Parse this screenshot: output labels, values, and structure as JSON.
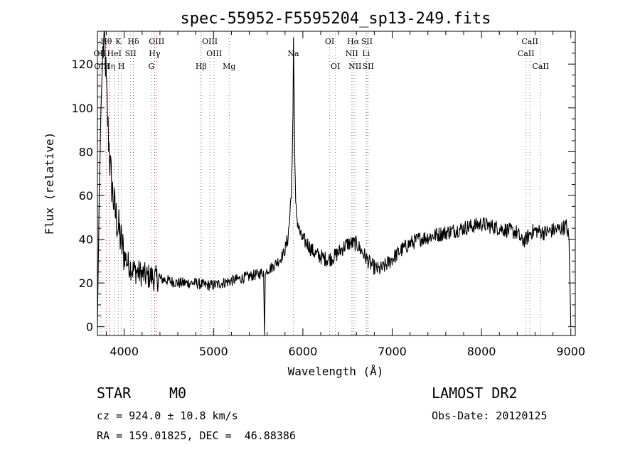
{
  "chart_data": {
    "type": "line",
    "title": "spec-55952-F5595204_sp13-249.fits",
    "xlabel": "Wavelength (Å)",
    "ylabel": "Flux (relative)",
    "xlim": [
      3700,
      9050
    ],
    "ylim": [
      -4,
      135
    ],
    "xticks": [
      4000,
      5000,
      6000,
      7000,
      8000,
      9000
    ],
    "yticks": [
      0,
      20,
      40,
      60,
      80,
      100,
      120
    ],
    "grid": false,
    "series": [
      {
        "x": [
          3700,
          3720,
          3740,
          3760,
          3780,
          3800,
          3820,
          3840,
          3860,
          3880,
          3900,
          3920,
          3940,
          3960,
          3980,
          4000,
          4020,
          4040,
          4060,
          4080,
          4100,
          4150,
          4200,
          4250,
          4300,
          4350,
          4400,
          4500,
          4600,
          4700,
          4800,
          4900,
          5000,
          5100,
          5200,
          5300,
          5400,
          5500,
          5560,
          5570,
          5580,
          5590,
          5600,
          5650,
          5700,
          5750,
          5800,
          5830,
          5850,
          5870,
          5880,
          5890,
          5895,
          5900,
          5910,
          5920,
          5940,
          5960,
          5980,
          6000,
          6050,
          6100,
          6150,
          6200,
          6250,
          6300,
          6350,
          6400,
          6450,
          6500,
          6550,
          6600,
          6650,
          6700,
          6750,
          6800,
          6850,
          6900,
          6950,
          7000,
          7050,
          7100,
          7200,
          7300,
          7400,
          7500,
          7600,
          7700,
          7800,
          7900,
          8000,
          8100,
          8200,
          8300,
          8400,
          8450,
          8500,
          8550,
          8600,
          8700,
          8800,
          8900,
          8950,
          8980,
          9000
        ],
        "y": [
          0,
          60,
          100,
          125,
          132,
          110,
          90,
          75,
          65,
          58,
          52,
          48,
          44,
          40,
          36,
          33,
          31,
          29,
          28,
          27,
          26,
          25,
          24,
          23,
          23,
          22,
          22,
          21,
          20,
          20,
          20,
          19,
          19,
          20,
          21,
          22,
          23,
          24,
          25,
          -4,
          24,
          25,
          26,
          27,
          29,
          31,
          35,
          40,
          48,
          62,
          75,
          100,
          132,
          115,
          75,
          55,
          48,
          44,
          41,
          40,
          38,
          35,
          33,
          32,
          31,
          31,
          32,
          34,
          36,
          38,
          38,
          38,
          35,
          32,
          29,
          27,
          26,
          27,
          29,
          31,
          33,
          35,
          38,
          40,
          41,
          42,
          43,
          44,
          45,
          46,
          47,
          46,
          45,
          44,
          43,
          39,
          40,
          43,
          44,
          43,
          44,
          45,
          46,
          40,
          0
        ]
      }
    ],
    "line_markers": [
      {
        "label": "Hθ",
        "wave": 3798,
        "row": 0,
        "color": "#cc2222"
      },
      {
        "label": "K",
        "wave": 3934,
        "row": 0,
        "color": "#888888"
      },
      {
        "label": "Hδ",
        "wave": 4102,
        "row": 0,
        "color": "#cc2222"
      },
      {
        "label": "OIII",
        "wave": 4363,
        "row": 0,
        "color": "#888888"
      },
      {
        "label": "OIII",
        "wave": 4959,
        "row": 0,
        "color": "#888888"
      },
      {
        "label": "OI",
        "wave": 6300,
        "row": 0,
        "color": "#888888"
      },
      {
        "label": "Hα",
        "wave": 6563,
        "row": 0,
        "color": "#cc2222"
      },
      {
        "label": "SII",
        "wave": 6716,
        "row": 0,
        "color": "#888888"
      },
      {
        "label": "CaII",
        "wave": 8542,
        "row": 0,
        "color": "#888888"
      },
      {
        "label": "OII",
        "wave": 3727,
        "row": 1,
        "color": "#888888"
      },
      {
        "label": "HeI",
        "wave": 3889,
        "row": 1,
        "color": "#888888"
      },
      {
        "label": "SII",
        "wave": 4072,
        "row": 1,
        "color": "#888888"
      },
      {
        "label": "Hγ",
        "wave": 4340,
        "row": 1,
        "color": "#cc2222"
      },
      {
        "label": "OIII",
        "wave": 5007,
        "row": 1,
        "color": "#888888"
      },
      {
        "label": "Na",
        "wave": 5893,
        "row": 1,
        "color": "#888888"
      },
      {
        "label": "NII",
        "wave": 6548,
        "row": 1,
        "color": "#888888"
      },
      {
        "label": "Li",
        "wave": 6708,
        "row": 1,
        "color": "#888888"
      },
      {
        "label": "CaII",
        "wave": 8498,
        "row": 1,
        "color": "#888888"
      },
      {
        "label": "OIII",
        "wave": 3750,
        "row": 2,
        "color": "#888888"
      },
      {
        "label": "Hη",
        "wave": 3835,
        "row": 2,
        "color": "#cc2222"
      },
      {
        "label": "H",
        "wave": 3968,
        "row": 2,
        "color": "#888888"
      },
      {
        "label": "G",
        "wave": 4304,
        "row": 2,
        "color": "#888888"
      },
      {
        "label": "Hβ",
        "wave": 4861,
        "row": 2,
        "color": "#cc2222"
      },
      {
        "label": "Mg",
        "wave": 5175,
        "row": 2,
        "color": "#888888"
      },
      {
        "label": "OI",
        "wave": 6364,
        "row": 2,
        "color": "#888888"
      },
      {
        "label": "NII",
        "wave": 6584,
        "row": 2,
        "color": "#888888"
      },
      {
        "label": "SII",
        "wave": 6731,
        "row": 2,
        "color": "#888888"
      },
      {
        "label": "CaII",
        "wave": 8662,
        "row": 2,
        "color": "#888888"
      }
    ]
  },
  "info": {
    "object_class": "STAR",
    "subclass": "M0",
    "survey": "LAMOST DR2",
    "redshift": "cz = 924.0 ± 10.8 km/s",
    "obs_date": "Obs-Date: 20120125",
    "coords": "RA = 159.01825, DEC =  46.88386"
  }
}
